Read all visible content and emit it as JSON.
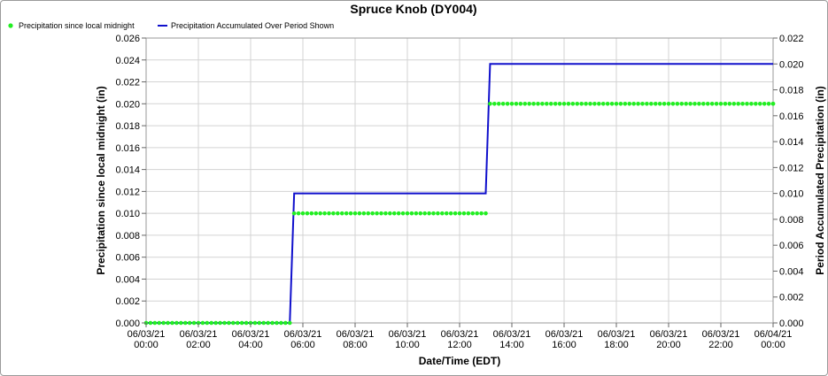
{
  "chart_data": {
    "type": "line",
    "title": "Spruce Knob (DY004)",
    "xlabel": "Date/Time (EDT)",
    "ylabel": "Precipitation since local midnight (in)",
    "y2label": "Period Accumulated Precipitation (in)",
    "ylim": [
      0,
      0.026
    ],
    "y2lim": [
      0,
      0.022
    ],
    "x_tick_labels": [
      [
        "06/03/21",
        "00:00"
      ],
      [
        "06/03/21",
        "02:00"
      ],
      [
        "06/03/21",
        "04:00"
      ],
      [
        "06/03/21",
        "06:00"
      ],
      [
        "06/03/21",
        "08:00"
      ],
      [
        "06/03/21",
        "10:00"
      ],
      [
        "06/03/21",
        "12:00"
      ],
      [
        "06/03/21",
        "14:00"
      ],
      [
        "06/03/21",
        "16:00"
      ],
      [
        "06/03/21",
        "18:00"
      ],
      [
        "06/03/21",
        "20:00"
      ],
      [
        "06/03/21",
        "22:00"
      ],
      [
        "06/04/21",
        "00:00"
      ]
    ],
    "y_tick_labels": [
      "0.000",
      "0.002",
      "0.004",
      "0.006",
      "0.008",
      "0.010",
      "0.012",
      "0.014",
      "0.016",
      "0.018",
      "0.020",
      "0.022",
      "0.024",
      "0.026"
    ],
    "y2_tick_labels": [
      "0.000",
      "0.002",
      "0.004",
      "0.006",
      "0.008",
      "0.010",
      "0.012",
      "0.014",
      "0.016",
      "0.018",
      "0.020",
      "0.022"
    ],
    "grid": true,
    "legend_position": "top-left",
    "series": [
      {
        "name": "Precipitation since local midnight",
        "axis": "left",
        "style": "dots",
        "color": "#22ee22",
        "segments": [
          {
            "x_start": "2021-06-03 00:00",
            "x_end": "2021-06-03 05:30",
            "step_minutes": 10,
            "value": 0.0
          },
          {
            "x_start": "2021-06-03 05:40",
            "x_end": "2021-06-03 13:00",
            "step_minutes": 10,
            "value": 0.01
          },
          {
            "x_start": "2021-06-03 13:10",
            "x_end": "2021-06-04 00:00",
            "step_minutes": 10,
            "value": 0.02
          }
        ],
        "extra_points": [
          {
            "x": "2021-06-04 00:00",
            "value": 0.02
          }
        ]
      },
      {
        "name": "Precipitation Accumulated Over Period Shown",
        "axis": "right",
        "style": "step-line",
        "color": "#1010cc",
        "points": [
          {
            "x": "2021-06-03 00:00",
            "value": 0.0
          },
          {
            "x": "2021-06-03 05:30",
            "value": 0.0
          },
          {
            "x": "2021-06-03 05:40",
            "value": 0.01
          },
          {
            "x": "2021-06-03 13:00",
            "value": 0.01
          },
          {
            "x": "2021-06-03 13:10",
            "value": 0.02
          },
          {
            "x": "2021-06-04 00:00",
            "value": 0.02
          }
        ]
      }
    ]
  }
}
